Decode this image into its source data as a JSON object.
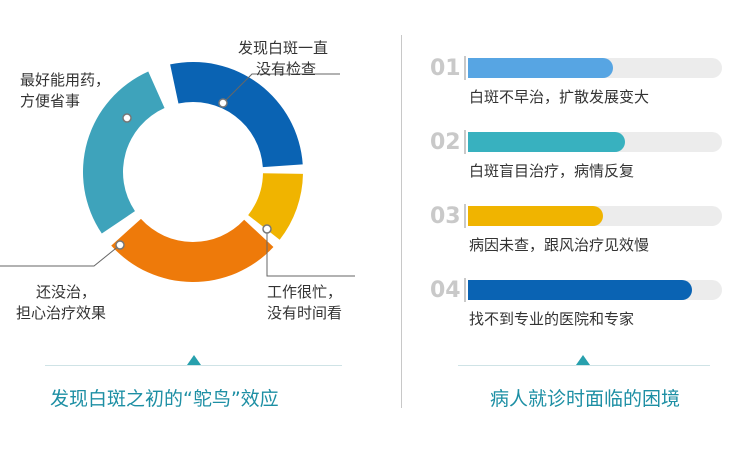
{
  "colors": {
    "dark_blue": "#0a63b3",
    "yellow": "#f0b400",
    "orange": "#ee7a0a",
    "teal": "#3ea3bb",
    "light_blue": "#57a5e3",
    "teal_mid": "#38b1bf",
    "caption": "#1d8fa4"
  },
  "left": {
    "donut_segments": [
      {
        "label": "发现白斑一直没有检查",
        "color": "#0a63b3"
      },
      {
        "label": "工作很忙，没有时间看",
        "color": "#f0b400"
      },
      {
        "label": "还没治，担心治疗效果",
        "color": "#ee7a0a"
      },
      {
        "label": "最好能用药，方便省事",
        "color": "#3ea3bb"
      }
    ],
    "labels": {
      "seg1_line1": "发现白斑一直",
      "seg1_line2": "没有检查",
      "seg2_line1": "工作很忙，",
      "seg2_line2": "没有时间看",
      "seg3_line1": "还没治，",
      "seg3_line2": "担心治疗效果",
      "seg4_line1": "最好能用药，",
      "seg4_line2": "方便省事"
    },
    "caption": "发现白斑之初的“鸵鸟”效应"
  },
  "right": {
    "items": [
      {
        "num": "01",
        "text": "白斑不早治，扩散发展变大",
        "fill": 0.57,
        "color": "#57a5e3"
      },
      {
        "num": "02",
        "text": "白斑盲目治疗，病情反复",
        "fill": 0.62,
        "color": "#38b1bf"
      },
      {
        "num": "03",
        "text": "病因未查，跟风治疗见效慢",
        "fill": 0.53,
        "color": "#f0b400"
      },
      {
        "num": "04",
        "text": "找不到专业的医院和专家",
        "fill": 0.88,
        "color": "#0a63b3"
      }
    ],
    "caption": "病人就诊时面临的困境"
  }
}
